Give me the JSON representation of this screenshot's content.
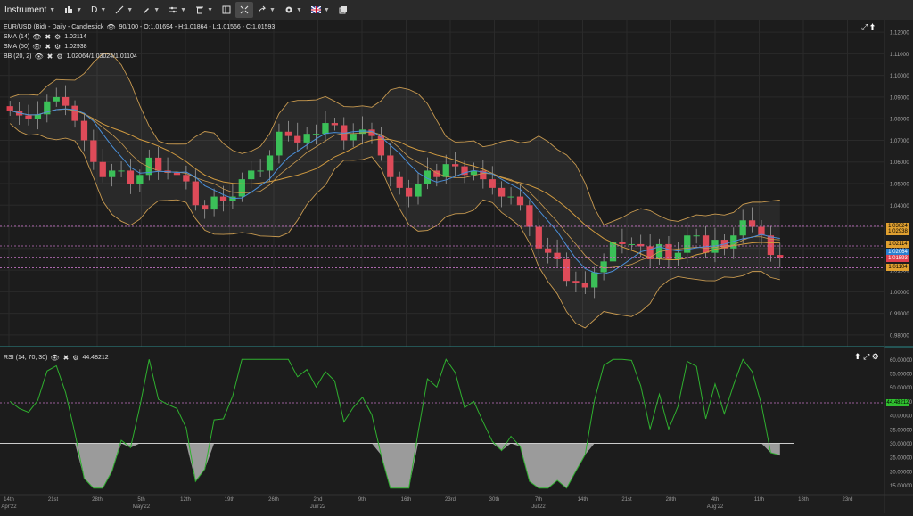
{
  "toolbar": {
    "instrument_label": "Instrument",
    "period_label": "D",
    "items": [
      {
        "name": "chart-type-icon",
        "glyph": "▥"
      },
      {
        "name": "draw-line-icon",
        "glyph": "⟋"
      },
      {
        "name": "pen-icon",
        "glyph": "✎"
      },
      {
        "name": "indicators-icon",
        "glyph": "⚟"
      },
      {
        "name": "trash-icon",
        "glyph": "🗑"
      },
      {
        "name": "layout-icon",
        "glyph": "▤"
      },
      {
        "name": "fit-icon",
        "glyph": "✥"
      },
      {
        "name": "share-icon",
        "glyph": "➦"
      },
      {
        "name": "settings-icon",
        "glyph": "⚙"
      },
      {
        "name": "language-flag-icon",
        "glyph": "🇬🇧"
      },
      {
        "name": "popout-icon",
        "glyph": "❐"
      }
    ]
  },
  "legend": {
    "main": "EUR/USD (Bid) - Daily - Candlestick",
    "main_values": "90/100 - O:1.01694 - H:1.01864 - L:1.01566 - C:1.01593",
    "sma14_label": "SMA (14)",
    "sma14_value": "1.02114",
    "sma50_label": "SMA (50)",
    "sma50_value": "1.02938",
    "bb_label": "BB (20, 2)",
    "bb_value": "1.02064/1.03024/1.01104",
    "rsi_label": "RSI (14, 70, 30)",
    "rsi_value": "44.48212"
  },
  "price_axis": [
    "1.12000",
    "1.11000",
    "1.10000",
    "1.09000",
    "1.08000",
    "1.07000",
    "1.06000",
    "1.05000",
    "1.04000",
    "1.03000",
    "1.02000",
    "1.01000",
    "1.00000",
    "0.99000",
    "0.98000"
  ],
  "rsi_axis": [
    "60.00000",
    "55.00000",
    "50.00000",
    "45.00000",
    "40.00000",
    "35.00000",
    "30.00000",
    "25.00000",
    "20.00000",
    "15.00000"
  ],
  "price_tags": [
    {
      "label": "1.03024",
      "bg": "#e0a030",
      "fg": "#000"
    },
    {
      "label": "1.02938",
      "bg": "#e0a030",
      "fg": "#000"
    },
    {
      "label": "1.02114",
      "bg": "#e0a030",
      "fg": "#000"
    },
    {
      "label": "1.02064",
      "bg": "#2a7fd0",
      "fg": "#fff"
    },
    {
      "label": "1.01593",
      "bg": "#e04050",
      "fg": "#fff"
    },
    {
      "label": "1.01104",
      "bg": "#e0a030",
      "fg": "#000"
    }
  ],
  "rsi_tag": {
    "label": "44.48212",
    "bg": "#2fbf2f",
    "fg": "#000"
  },
  "x_axis": [
    {
      "top": "14th",
      "bottom": "Apr'22"
    },
    {
      "top": "21st",
      "bottom": ""
    },
    {
      "top": "28th",
      "bottom": ""
    },
    {
      "top": "5th",
      "bottom": "May'22"
    },
    {
      "top": "12th",
      "bottom": ""
    },
    {
      "top": "19th",
      "bottom": ""
    },
    {
      "top": "26th",
      "bottom": ""
    },
    {
      "top": "2nd",
      "bottom": "Jun'22"
    },
    {
      "top": "9th",
      "bottom": ""
    },
    {
      "top": "16th",
      "bottom": ""
    },
    {
      "top": "23rd",
      "bottom": ""
    },
    {
      "top": "30th",
      "bottom": ""
    },
    {
      "top": "7th",
      "bottom": "Jul'22"
    },
    {
      "top": "14th",
      "bottom": ""
    },
    {
      "top": "21st",
      "bottom": ""
    },
    {
      "top": "28th",
      "bottom": ""
    },
    {
      "top": "4th",
      "bottom": "Aug'22"
    },
    {
      "top": "11th",
      "bottom": ""
    },
    {
      "top": "18th",
      "bottom": ""
    },
    {
      "top": "23rd",
      "bottom": ""
    }
  ],
  "chart_data": {
    "type": "candlestick",
    "instrument": "EUR/USD (Bid)",
    "period": "Daily",
    "colors": {
      "up": "#2fbf4f",
      "down": "#e04050",
      "sma14": "#4a8fd8",
      "sma50": "#d09a40",
      "bb": "#c89a50",
      "rsi": "#2fb02f"
    },
    "ylim": [
      0.975,
      1.125
    ],
    "rsi_ylim": [
      12,
      62
    ],
    "rsi_levels": [
      70,
      30
    ],
    "candles_close": [
      1.0838,
      1.0815,
      1.08,
      1.082,
      1.088,
      1.09,
      1.086,
      1.079,
      1.07,
      1.06,
      1.053,
      1.056,
      1.056,
      1.05,
      1.054,
      1.062,
      1.056,
      1.055,
      1.054,
      1.051,
      1.04,
      1.038,
      1.044,
      1.042,
      1.044,
      1.052,
      1.056,
      1.056,
      1.063,
      1.074,
      1.072,
      1.069,
      1.073,
      1.073,
      1.078,
      1.077,
      1.07,
      1.073,
      1.075,
      1.072,
      1.063,
      1.053,
      1.048,
      1.044,
      1.05,
      1.056,
      1.053,
      1.059,
      1.058,
      1.054,
      1.056,
      1.052,
      1.048,
      1.044,
      1.044,
      1.04,
      1.03,
      1.02,
      1.018,
      1.015,
      1.005,
      1.004,
      1.002,
      1.009,
      1.014,
      1.023,
      1.022,
      1.022,
      1.021,
      1.015,
      1.022,
      1.015,
      1.018,
      1.026,
      1.026,
      1.018,
      1.024,
      1.02,
      1.026,
      1.033,
      1.03,
      1.026,
      1.017,
      1.0159
    ]
  }
}
